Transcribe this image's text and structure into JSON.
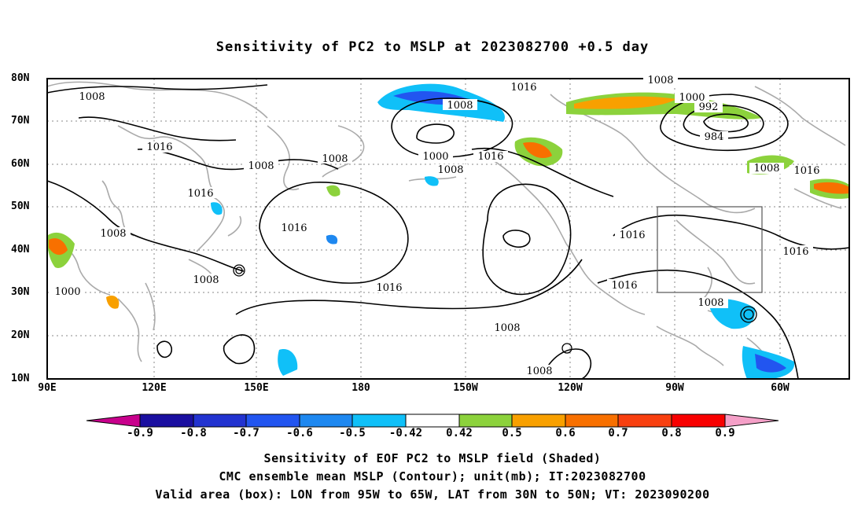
{
  "title": "Sensitivity of PC2 to MSLP at 2023082700 +0.5 day",
  "lat_ticks": [
    "80N",
    "70N",
    "60N",
    "50N",
    "40N",
    "30N",
    "20N",
    "10N"
  ],
  "lon_ticks": [
    "90E",
    "120E",
    "150E",
    "180",
    "150W",
    "120W",
    "90W",
    "60W"
  ],
  "contour_labels": {
    "l1": "1008",
    "l2": "1016",
    "l3": "1008",
    "l4": "1008",
    "l5": "1016",
    "l6": "1008",
    "l7": "1000",
    "l8": "1008",
    "l9": "1008",
    "l10": "1016",
    "l11": "1016",
    "l12": "1000",
    "l13": "1008",
    "l14": "1016",
    "l15": "1016",
    "l16": "1008",
    "l17": "1000",
    "l18": "992",
    "l19": "984",
    "l20": "1008",
    "l21": "1016",
    "l22": "1016",
    "l23": "1016",
    "l24": "1008",
    "l25": "1016",
    "l26": "1008"
  },
  "colorbar": {
    "labels": [
      "-0.9",
      "-0.8",
      "-0.7",
      "-0.6",
      "-0.5",
      "-0.42",
      "0.42",
      "0.5",
      "0.6",
      "0.7",
      "0.8",
      "0.9"
    ],
    "colors": [
      "#c8008c",
      "#1a0fa0",
      "#2233d0",
      "#2255f0",
      "#1e88f0",
      "#10c0f8",
      "#ffffff",
      "#8cd23c",
      "#f8a000",
      "#f87000",
      "#f84010",
      "#f80000",
      "#f5a0c8"
    ]
  },
  "caption": {
    "line1": "Sensitivity of EOF PC2 to MSLP field (Shaded)",
    "line2": "CMC ensemble mean MSLP (Contour); unit(mb); IT:2023082700",
    "line3": "Valid area (box): LON from 95W to 65W, LAT from 30N to 50N; VT: 2023090200"
  }
}
